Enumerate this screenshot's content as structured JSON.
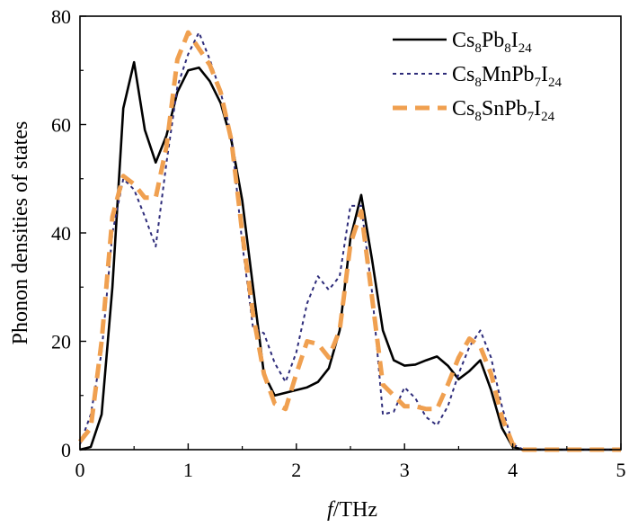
{
  "chart_data": {
    "type": "line",
    "xlabel_italic": "f",
    "xlabel_unit": "/THz",
    "ylabel": "Phonon densities of states",
    "xlim": [
      0,
      5
    ],
    "ylim": [
      0,
      80
    ],
    "x_ticks": [
      0,
      1,
      2,
      3,
      4,
      5
    ],
    "y_ticks": [
      0,
      20,
      40,
      60,
      80
    ],
    "grid": false,
    "legend_position": "top-right",
    "series": [
      {
        "name_parts": [
          [
            "Cs",
            false
          ],
          [
            "8",
            true
          ],
          [
            "Pb",
            false
          ],
          [
            "8",
            true
          ],
          [
            "I",
            false
          ],
          [
            "24",
            true
          ]
        ],
        "color": "#000000",
        "style": "solid",
        "x": [
          0,
          0.1,
          0.2,
          0.3,
          0.4,
          0.5,
          0.6,
          0.7,
          0.8,
          0.9,
          1.0,
          1.1,
          1.2,
          1.3,
          1.4,
          1.5,
          1.6,
          1.7,
          1.8,
          1.9,
          2.0,
          2.1,
          2.2,
          2.3,
          2.4,
          2.5,
          2.6,
          2.7,
          2.8,
          2.9,
          3.0,
          3.1,
          3.2,
          3.3,
          3.4,
          3.5,
          3.6,
          3.7,
          3.8,
          3.9,
          4.0,
          4.1,
          4.2,
          4.5,
          5.0
        ],
        "y": [
          0,
          0.5,
          6.5,
          30,
          63,
          71.5,
          59,
          53,
          58,
          66,
          70,
          70.5,
          68,
          64,
          57,
          46,
          30,
          14,
          10,
          10.5,
          11,
          11.5,
          12.5,
          15,
          22,
          39,
          47,
          35,
          22,
          16.5,
          15.5,
          15.7,
          16.5,
          17.2,
          15.5,
          13,
          14.5,
          16.5,
          11,
          4,
          0.5,
          0,
          0,
          0,
          0
        ]
      },
      {
        "name_parts": [
          [
            "Cs",
            false
          ],
          [
            "8",
            true
          ],
          [
            "MnPb",
            false
          ],
          [
            "7",
            true
          ],
          [
            "I",
            false
          ],
          [
            "24",
            true
          ]
        ],
        "color": "#2e2c7a",
        "style": "dotted",
        "x": [
          0,
          0.1,
          0.2,
          0.3,
          0.4,
          0.5,
          0.6,
          0.7,
          0.8,
          0.9,
          1.0,
          1.1,
          1.2,
          1.3,
          1.4,
          1.5,
          1.6,
          1.7,
          1.8,
          1.9,
          2.0,
          2.1,
          2.2,
          2.3,
          2.4,
          2.5,
          2.6,
          2.7,
          2.8,
          2.9,
          3.0,
          3.1,
          3.2,
          3.3,
          3.4,
          3.5,
          3.6,
          3.7,
          3.8,
          3.9,
          4.0,
          4.1,
          4.2,
          4.5,
          5.0
        ],
        "y": [
          1,
          6.5,
          18,
          40,
          50,
          48,
          43,
          37.5,
          53,
          67,
          73,
          77,
          72,
          66,
          58,
          38,
          22.5,
          21.5,
          16,
          12.5,
          18,
          27,
          32,
          29.5,
          32,
          45,
          45,
          29,
          6.5,
          7,
          11.5,
          9.5,
          6,
          4.5,
          8,
          14,
          19,
          22,
          17,
          8,
          1,
          0,
          0,
          0,
          0
        ]
      },
      {
        "name_parts": [
          [
            "Cs",
            false
          ],
          [
            "8",
            true
          ],
          [
            "SnPb",
            false
          ],
          [
            "7",
            true
          ],
          [
            "I",
            false
          ],
          [
            "24",
            true
          ]
        ],
        "color": "#f0a050",
        "style": "dashed",
        "x": [
          0,
          0.1,
          0.2,
          0.3,
          0.4,
          0.5,
          0.6,
          0.7,
          0.8,
          0.9,
          1.0,
          1.1,
          1.2,
          1.3,
          1.4,
          1.5,
          1.6,
          1.7,
          1.8,
          1.9,
          2.0,
          2.1,
          2.2,
          2.3,
          2.4,
          2.5,
          2.6,
          2.7,
          2.8,
          2.9,
          3.0,
          3.1,
          3.2,
          3.3,
          3.4,
          3.5,
          3.6,
          3.7,
          3.8,
          3.9,
          4.0,
          4.1,
          4.2,
          4.5,
          5.0
        ],
        "y": [
          1.5,
          4,
          20,
          43,
          50.5,
          49,
          46.5,
          46.5,
          56,
          72,
          77,
          74,
          71,
          66,
          57,
          40,
          25,
          14,
          8.5,
          7.5,
          14,
          20,
          19.5,
          17,
          22,
          38,
          44,
          28,
          12,
          10,
          8,
          8,
          7.5,
          7.5,
          12,
          17,
          20.5,
          19,
          14,
          6,
          1,
          0,
          0,
          0,
          0
        ]
      }
    ]
  }
}
